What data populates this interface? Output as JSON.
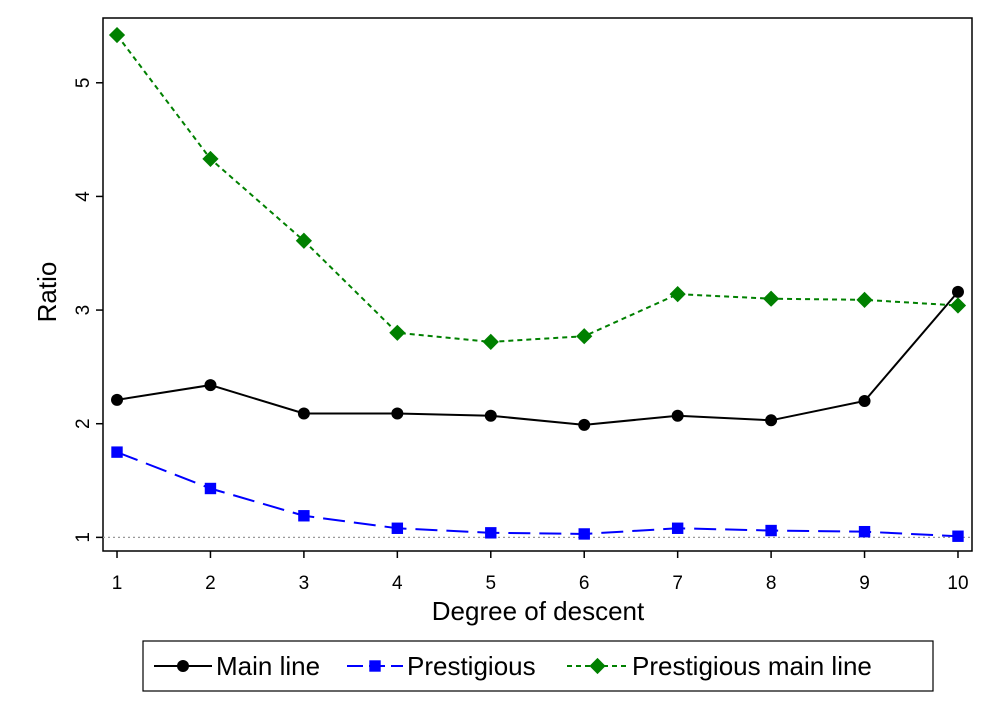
{
  "chart_data": {
    "type": "line",
    "title": "",
    "xlabel": "Degree of descent",
    "ylabel": "Ratio",
    "x": [
      1,
      2,
      3,
      4,
      5,
      6,
      7,
      8,
      9,
      10
    ],
    "xticks": [
      "1",
      "2",
      "3",
      "4",
      "5",
      "6",
      "7",
      "8",
      "9",
      "10"
    ],
    "yticks": [
      "1",
      "2",
      "3",
      "4",
      "5"
    ],
    "ytick_values": [
      1,
      2,
      3,
      4,
      5
    ],
    "xlim": [
      0.85,
      10.15
    ],
    "ylim": [
      0.88,
      5.57
    ],
    "reference_line": {
      "y": 1,
      "style": "dotted",
      "color": "#999999"
    },
    "grid": false,
    "legend_position": "bottom",
    "series": [
      {
        "name": "Main line",
        "values": [
          2.21,
          2.34,
          2.09,
          2.09,
          2.07,
          1.99,
          2.07,
          2.03,
          2.2,
          3.16
        ],
        "color": "#000000",
        "marker": "circle",
        "dash": "solid"
      },
      {
        "name": "Prestigious",
        "values": [
          1.75,
          1.43,
          1.19,
          1.08,
          1.04,
          1.03,
          1.08,
          1.06,
          1.05,
          1.01
        ],
        "color": "#0000ff",
        "marker": "square",
        "dash": "long-dash"
      },
      {
        "name": "Prestigious main line",
        "values": [
          5.42,
          4.33,
          3.61,
          2.8,
          2.72,
          2.77,
          3.14,
          3.1,
          3.09,
          3.04
        ],
        "color": "#008000",
        "marker": "diamond",
        "dash": "short-dash"
      }
    ]
  }
}
